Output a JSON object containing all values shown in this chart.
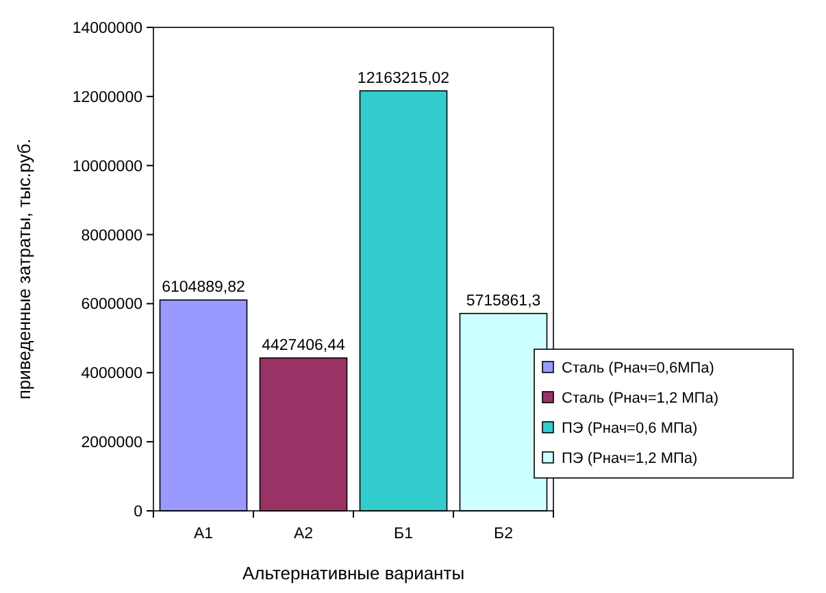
{
  "chart_data": {
    "type": "bar",
    "xlabel": "Альтернативные варианты",
    "ylabel": "приведенные затраты, тыс.руб.",
    "categories": [
      "А1",
      "А2",
      "Б1",
      "Б2"
    ],
    "series": [
      {
        "name": "Сталь (Рнач=0,6МПа)",
        "color": "#9999ff",
        "values": [
          6104889.82,
          null,
          null,
          null
        ],
        "value_labels": [
          "6104889,82",
          null,
          null,
          null
        ]
      },
      {
        "name": "Сталь (Рнач=1,2 МПа)",
        "color": "#993366",
        "values": [
          null,
          4427406.44,
          null,
          null
        ],
        "value_labels": [
          null,
          "4427406,44",
          null,
          null
        ]
      },
      {
        "name": "ПЭ (Рнач=0,6 МПа)",
        "color": "#33cccc",
        "values": [
          null,
          null,
          12163215.02,
          null
        ],
        "value_labels": [
          null,
          null,
          "12163215,02",
          null
        ]
      },
      {
        "name": "ПЭ (Рнач=1,2 МПа)",
        "color": "#ccffff",
        "values": [
          null,
          null,
          null,
          5715861.3
        ],
        "value_labels": [
          null,
          null,
          null,
          "5715861,3"
        ]
      }
    ],
    "ylim": [
      0,
      14000000
    ],
    "yticks": [
      0,
      2000000,
      4000000,
      6000000,
      8000000,
      10000000,
      12000000,
      14000000
    ],
    "grid": false,
    "legend": "right"
  }
}
